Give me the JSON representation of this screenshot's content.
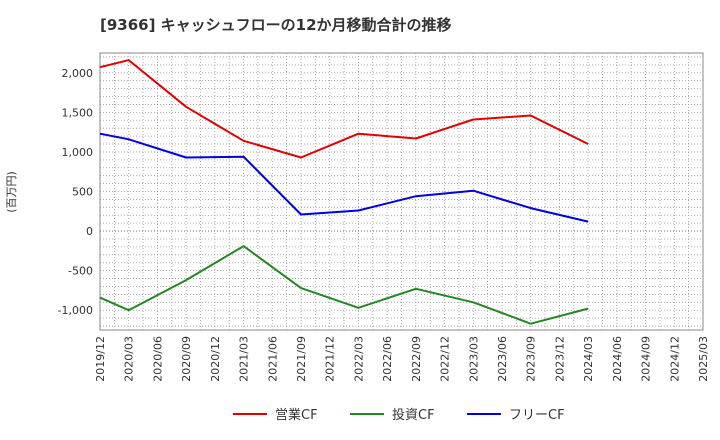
{
  "chart_data": {
    "type": "line",
    "title": "[9366]  キャッシュフローの12か月移動合計の推移",
    "ylabel": "(百万円)",
    "xlabel": "",
    "ylim": [
      -1250,
      2250
    ],
    "yticks": [
      2000,
      1500,
      1000,
      500,
      0,
      -500,
      -1000
    ],
    "ytick_labels": [
      "2,000",
      "1,500",
      "1,000",
      "500",
      "0",
      "-500",
      "-1,000"
    ],
    "categories": [
      "2019/12",
      "2020/03",
      "2020/06",
      "2020/09",
      "2020/12",
      "2021/03",
      "2021/06",
      "2021/09",
      "2021/12",
      "2022/03",
      "2022/06",
      "2022/09",
      "2022/12",
      "2023/03",
      "2023/06",
      "2023/09",
      "2023/12",
      "2024/03",
      "2024/06",
      "2024/09",
      "2024/12",
      "2025/03"
    ],
    "grid": true,
    "legend_position": "bottom",
    "series": [
      {
        "name": "営業CF",
        "color": "#e00000",
        "values": [
          2070,
          2160,
          null,
          1570,
          null,
          1140,
          null,
          930,
          null,
          1230,
          null,
          1170,
          null,
          1410,
          null,
          1460,
          null,
          1100,
          null,
          null,
          null,
          null
        ]
      },
      {
        "name": "投資CF",
        "color": "#228822",
        "values": [
          -840,
          -1000,
          null,
          -620,
          null,
          -190,
          null,
          -720,
          null,
          -970,
          null,
          -730,
          null,
          -900,
          null,
          -1170,
          null,
          -980,
          null,
          null,
          null,
          null
        ]
      },
      {
        "name": "フリーCF",
        "color": "#0000dd",
        "values": [
          1230,
          1160,
          null,
          930,
          null,
          940,
          null,
          210,
          null,
          260,
          null,
          440,
          null,
          510,
          null,
          290,
          null,
          120,
          null,
          null,
          null,
          null
        ]
      }
    ]
  }
}
